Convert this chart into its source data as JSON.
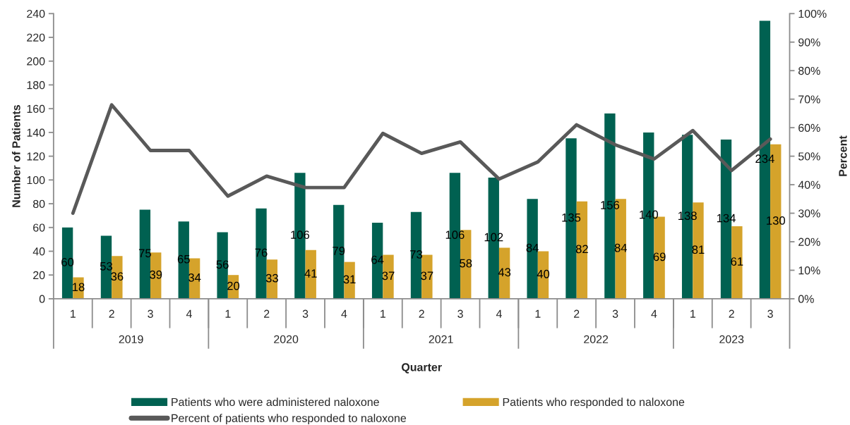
{
  "chart_data": {
    "type": "bar",
    "xlabel": "Quarter",
    "ylabel": "Number of Patients",
    "y2label": "Percent",
    "categories": [
      "1",
      "2",
      "3",
      "4",
      "1",
      "2",
      "3",
      "4",
      "1",
      "2",
      "3",
      "4",
      "1",
      "2",
      "3",
      "4",
      "1",
      "2",
      "3"
    ],
    "annotations": [
      "2019",
      "2020",
      "2021",
      "2022",
      "2023"
    ],
    "ylim": [
      0,
      240
    ],
    "yticks": [
      0,
      20,
      40,
      60,
      80,
      100,
      120,
      140,
      160,
      180,
      200,
      220,
      240
    ],
    "y2lim": [
      0,
      100
    ],
    "y2ticks": [
      {
        "value": 0,
        "label": "0%"
      },
      {
        "value": 10,
        "label": "10%"
      },
      {
        "value": 20,
        "label": "20%"
      },
      {
        "value": 30,
        "label": "30%"
      },
      {
        "value": 40,
        "label": "40%"
      },
      {
        "value": 50,
        "label": "50%"
      },
      {
        "value": 60,
        "label": "60%"
      },
      {
        "value": 70,
        "label": "70%"
      },
      {
        "value": 80,
        "label": "80%"
      },
      {
        "value": 90,
        "label": "90%"
      },
      {
        "value": 100,
        "label": "100%"
      }
    ],
    "series": [
      {
        "name": "Patients who were administered naloxone",
        "color": "#006151",
        "values": [
          60,
          53,
          75,
          65,
          56,
          76,
          106,
          79,
          64,
          73,
          106,
          102,
          84,
          135,
          156,
          140,
          138,
          134,
          234
        ],
        "value_labels": [
          "60",
          "53",
          "75",
          "65",
          "56",
          "76",
          "106",
          "79",
          "64",
          "73",
          "106",
          "102",
          "84",
          "135",
          "156",
          "140",
          "138",
          "134",
          "234"
        ]
      },
      {
        "name": "Patients who responded to naloxone",
        "color": "#d5a32b",
        "values": [
          18,
          36,
          39,
          34,
          20,
          33,
          41,
          31,
          37,
          37,
          58,
          43,
          40,
          82,
          84,
          69,
          81,
          61,
          130
        ],
        "value_labels": [
          "18",
          "36",
          "39",
          "34",
          "20",
          "33",
          "41",
          "31",
          "37",
          "37",
          "58",
          "43",
          "40",
          "82",
          "84",
          "69",
          "81",
          "61",
          "130"
        ]
      },
      {
        "name": "Percent of patients who responded to naloxone",
        "type": "line",
        "axis": "y2",
        "color": "#595959",
        "line_style": "solid",
        "values": [
          30,
          68,
          52,
          52,
          36,
          43,
          39,
          39,
          58,
          51,
          55,
          42,
          48,
          61,
          54,
          49,
          59,
          45,
          56
        ]
      }
    ],
    "legend": "bottom"
  }
}
